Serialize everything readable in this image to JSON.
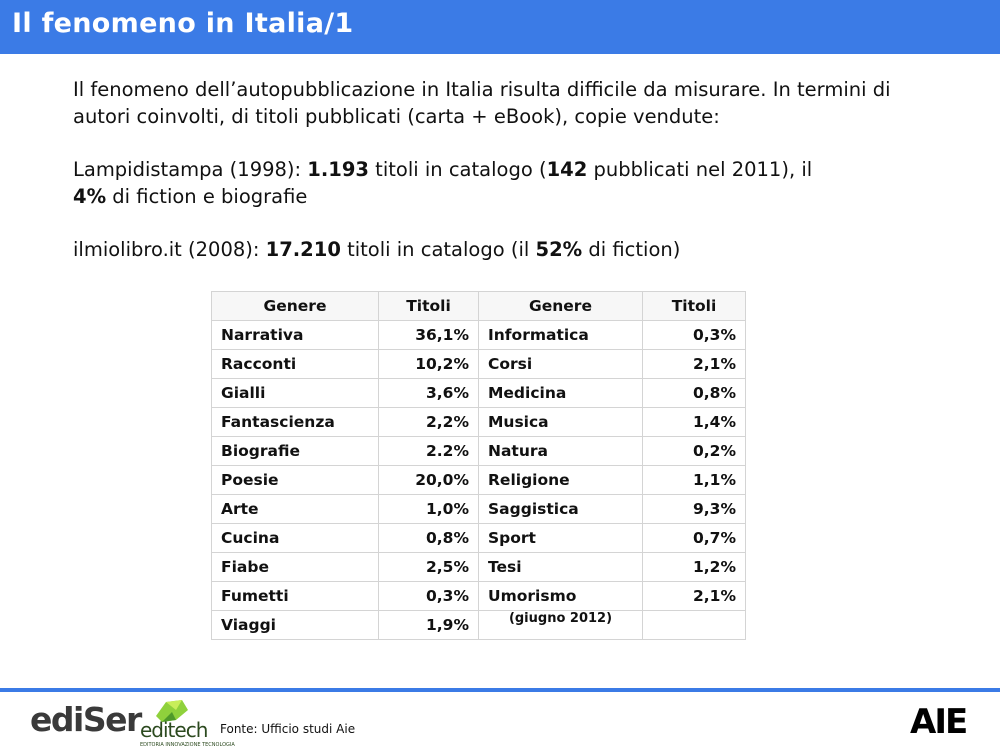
{
  "header": {
    "title": "Il fenomeno in Italia/1"
  },
  "intro": {
    "text": "Il fenomeno dell’autopubblicazione in Italia risulta difficile da misurare. In termini di autori coinvolti, di titoli pubblicati (carta + eBook), copie vendute:"
  },
  "lampidistampa": {
    "prefix": "Lampidistampa (1998): ",
    "titles": "1.193",
    "mid": " titoli in catalogo (",
    "published": "142",
    "mid2": " pubblicati nel 2011), il ",
    "percent": "4%",
    "suffix": " di fiction e biografie"
  },
  "ilmiolibro": {
    "prefix": "ilmiolibro.it (2008): ",
    "titles": "17.210",
    "mid": " titoli in catalogo (il ",
    "percent": "52%",
    "suffix": " di fiction)"
  },
  "table": {
    "headers": [
      "Genere",
      "Titoli",
      "Genere",
      "Titoli"
    ],
    "rows": [
      [
        "Narrativa",
        "36,1%",
        "Informatica",
        "0,3%"
      ],
      [
        "Racconti",
        "10,2%",
        "Corsi",
        "2,1%"
      ],
      [
        "Gialli",
        "3,6%",
        "Medicina",
        "0,8%"
      ],
      [
        "Fantascienza",
        "2,2%",
        "Musica",
        "1,4%"
      ],
      [
        "Biografie",
        "2.2%",
        "Natura",
        "0,2%"
      ],
      [
        "Poesie",
        "20,0%",
        "Religione",
        "1,1%"
      ],
      [
        "Arte",
        "1,0%",
        "Saggistica",
        "9,3%"
      ],
      [
        "Cucina",
        "0,8%",
        "Sport",
        "0,7%"
      ],
      [
        "Fiabe",
        "2,5%",
        "Tesi",
        "1,2%"
      ],
      [
        "Fumetti",
        "0,3%",
        "Umorismo",
        "2,1%"
      ],
      [
        "Viaggi",
        "1,9%",
        "(giugno 2012)",
        ""
      ]
    ]
  },
  "footer": {
    "logo_ediser": "ediSer",
    "logo_editech": "editech",
    "editech_tagline": "EDITORIA INNOVAZIONE TECNOLOGIA",
    "source": "Fonte: Ufficio studi Aie",
    "logo_aie": "AIE",
    "accent_color": "#3b7be6"
  }
}
